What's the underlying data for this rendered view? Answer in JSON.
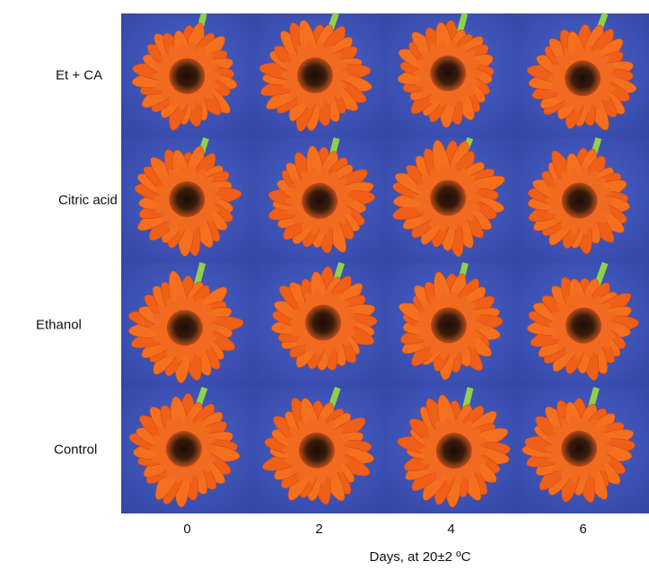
{
  "figure": {
    "rows": [
      "Et + CA",
      "Citric acid",
      "Ethanol",
      "Control"
    ],
    "columns": [
      "0",
      "2",
      "4",
      "6"
    ],
    "x_label": "Days, at 20±2 ºC"
  }
}
